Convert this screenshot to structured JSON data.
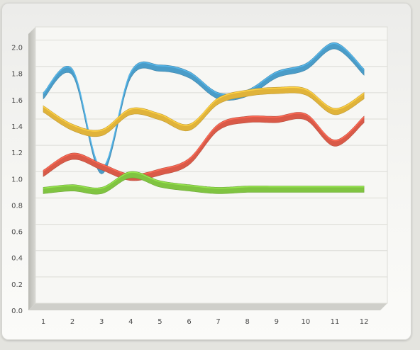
{
  "chart_data": {
    "type": "line",
    "title": "",
    "xlabel": "",
    "ylabel": "",
    "categories": [
      "1",
      "2",
      "3",
      "4",
      "5",
      "6",
      "7",
      "8",
      "9",
      "10",
      "11",
      "12"
    ],
    "y_ticks": [
      "0.0",
      "0.2",
      "0.4",
      "0.6",
      "0.8",
      "1.0",
      "1.2",
      "1.4",
      "1.6",
      "1.8",
      "2.0"
    ],
    "ylim": [
      0,
      2.1
    ],
    "grid": true,
    "legend": "none",
    "style": "3d-ribbon",
    "series": [
      {
        "color": "#4a9cc8",
        "values": [
          1.62,
          1.8,
          1.05,
          1.78,
          1.83,
          1.78,
          1.62,
          1.64,
          1.78,
          1.84,
          2.0,
          1.8
        ]
      },
      {
        "color": "#e0b33a",
        "values": [
          1.52,
          1.38,
          1.34,
          1.5,
          1.46,
          1.38,
          1.58,
          1.64,
          1.66,
          1.65,
          1.5,
          1.62
        ]
      },
      {
        "color": "#d95a48",
        "values": [
          1.03,
          1.16,
          1.08,
          1.0,
          1.04,
          1.12,
          1.38,
          1.44,
          1.44,
          1.46,
          1.26,
          1.44
        ]
      },
      {
        "color": "#80c441",
        "values": [
          0.9,
          0.92,
          0.9,
          1.02,
          0.95,
          0.92,
          0.9,
          0.91,
          0.91,
          0.91,
          0.91,
          0.91
        ]
      }
    ]
  }
}
